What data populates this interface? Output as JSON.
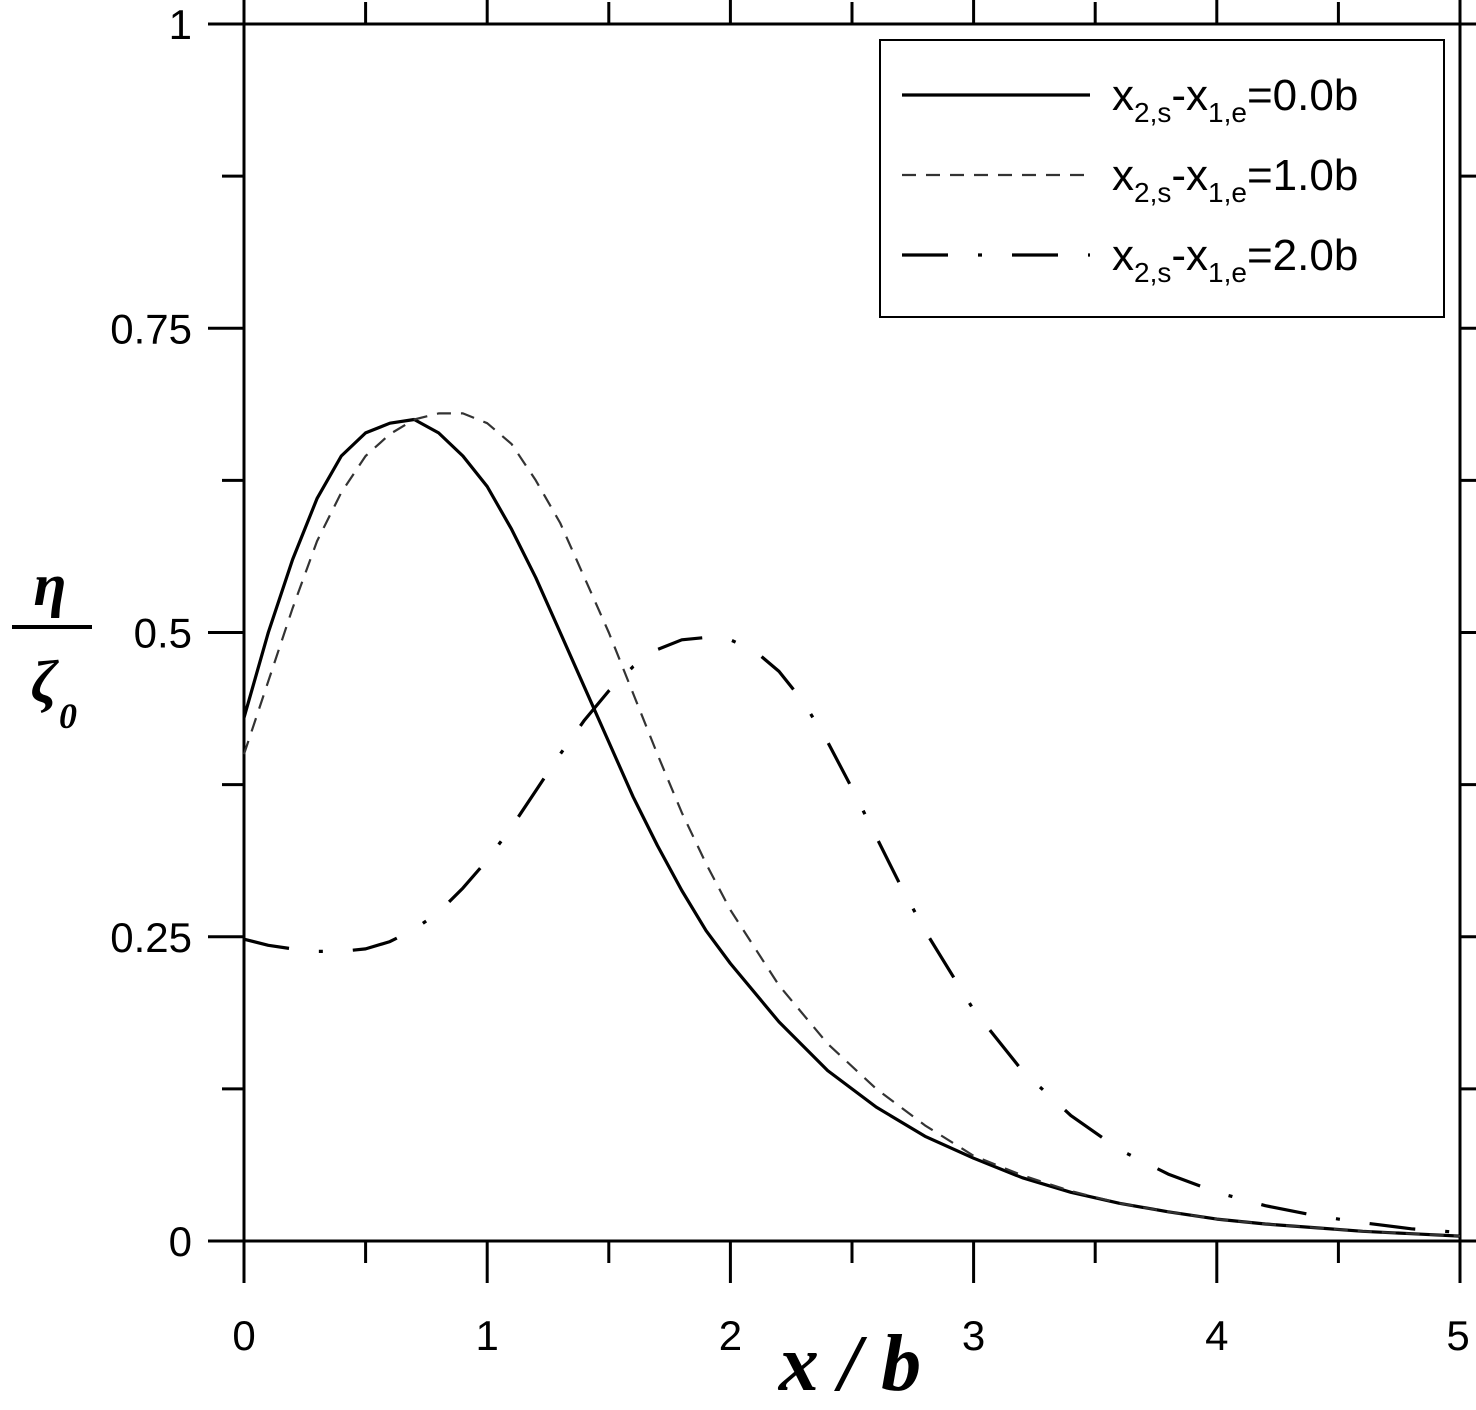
{
  "chart_data": {
    "type": "line",
    "xlabel": "x / b",
    "ylabel": {
      "numerator": "η",
      "denominator": "ζ",
      "denominator_sub": "0"
    },
    "xlim": [
      0,
      5
    ],
    "ylim": [
      0,
      1
    ],
    "xticks": [
      0,
      1,
      2,
      3,
      4,
      5
    ],
    "xtick_labels": [
      "0",
      "1",
      "2",
      "3",
      "4",
      "5"
    ],
    "yticks": [
      0,
      0.25,
      0.5,
      0.75,
      1
    ],
    "ytick_labels": [
      "0",
      "0.25",
      "0.5",
      "0.75",
      "1"
    ],
    "x_minor_step": 0.5,
    "y_minor_step": 0.125,
    "grid": false,
    "legend_position": "top-right",
    "series": [
      {
        "name": "x2,s-x1,e=0.0b",
        "legend": {
          "base1": "x",
          "sub1": "2,s",
          "mid": "-x",
          "sub2": "1,e",
          "tail": "=0.0b"
        },
        "line_style": "solid",
        "color": "#000000",
        "x": [
          0,
          0.1,
          0.2,
          0.3,
          0.4,
          0.5,
          0.6,
          0.7,
          0.8,
          0.9,
          1.0,
          1.1,
          1.2,
          1.3,
          1.4,
          1.5,
          1.6,
          1.7,
          1.8,
          1.9,
          2.0,
          2.2,
          2.4,
          2.6,
          2.8,
          3.0,
          3.2,
          3.4,
          3.6,
          3.8,
          4.0,
          4.2,
          4.4,
          4.6,
          4.8,
          5.0
        ],
        "y": [
          0.43,
          0.5,
          0.56,
          0.61,
          0.645,
          0.664,
          0.672,
          0.675,
          0.664,
          0.645,
          0.62,
          0.585,
          0.545,
          0.5,
          0.455,
          0.41,
          0.365,
          0.325,
          0.288,
          0.255,
          0.228,
          0.18,
          0.14,
          0.11,
          0.086,
          0.068,
          0.052,
          0.04,
          0.031,
          0.024,
          0.018,
          0.014,
          0.011,
          0.008,
          0.006,
          0.004
        ]
      },
      {
        "name": "x2,s-x1,e=1.0b",
        "legend": {
          "base1": "x",
          "sub1": "2,s",
          "mid": "-x",
          "sub2": "1,e",
          "tail": "=1.0b"
        },
        "line_style": "dashed",
        "color": "#333333",
        "x": [
          0,
          0.1,
          0.2,
          0.3,
          0.4,
          0.5,
          0.6,
          0.7,
          0.8,
          0.9,
          1.0,
          1.1,
          1.2,
          1.3,
          1.4,
          1.5,
          1.6,
          1.7,
          1.8,
          1.9,
          2.0,
          2.2,
          2.4,
          2.6,
          2.8,
          3.0,
          3.2,
          3.4,
          3.6,
          3.8,
          4.0,
          4.2,
          4.4,
          4.6,
          4.8,
          5.0
        ],
        "y": [
          0.4,
          0.46,
          0.52,
          0.575,
          0.615,
          0.645,
          0.663,
          0.675,
          0.68,
          0.68,
          0.672,
          0.655,
          0.625,
          0.59,
          0.545,
          0.5,
          0.45,
          0.4,
          0.352,
          0.31,
          0.272,
          0.21,
          0.162,
          0.125,
          0.095,
          0.07,
          0.054,
          0.041,
          0.031,
          0.024,
          0.018,
          0.014,
          0.011,
          0.008,
          0.006,
          0.004
        ]
      },
      {
        "name": "x2,s-x1,e=2.0b",
        "legend": {
          "base1": "x",
          "sub1": "2,s",
          "mid": "-x",
          "sub2": "1,e",
          "tail": "=2.0b"
        },
        "line_style": "dashdot",
        "color": "#000000",
        "x": [
          0,
          0.1,
          0.2,
          0.3,
          0.4,
          0.5,
          0.6,
          0.7,
          0.8,
          0.9,
          1.0,
          1.1,
          1.2,
          1.3,
          1.4,
          1.5,
          1.6,
          1.7,
          1.8,
          1.9,
          2.0,
          2.1,
          2.2,
          2.3,
          2.4,
          2.5,
          2.6,
          2.7,
          2.8,
          3.0,
          3.2,
          3.4,
          3.6,
          3.8,
          4.0,
          4.2,
          4.4,
          4.6,
          4.8,
          5.0
        ],
        "y": [
          0.248,
          0.243,
          0.24,
          0.238,
          0.238,
          0.24,
          0.246,
          0.256,
          0.27,
          0.29,
          0.313,
          0.34,
          0.37,
          0.4,
          0.428,
          0.452,
          0.472,
          0.486,
          0.494,
          0.496,
          0.494,
          0.485,
          0.468,
          0.443,
          0.41,
          0.372,
          0.332,
          0.292,
          0.255,
          0.19,
          0.14,
          0.103,
          0.075,
          0.055,
          0.04,
          0.029,
          0.021,
          0.015,
          0.01,
          0.007
        ]
      }
    ]
  }
}
